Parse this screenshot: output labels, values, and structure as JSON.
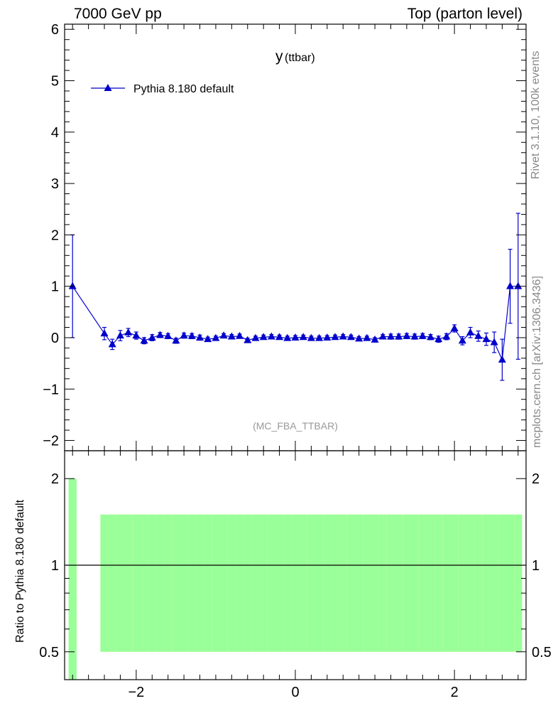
{
  "header": {
    "left": "7000 GeV pp",
    "right": "Top (parton level)"
  },
  "side_labels": {
    "rivet": "Rivet 3.1.10,  100k events",
    "mcplots": "mcplots.cern.ch [arXiv:1306.3436]"
  },
  "colors": {
    "series": "#0000cc",
    "band_inner": "#99ff99",
    "band_outer": "#ffff99",
    "axis": "#000000",
    "analysis_label": "#999999"
  },
  "chart_data": {
    "type": "line",
    "title_main": "y",
    "title_sub": "(ttbar)",
    "analysis": "(MC_FBA_TTBAR)",
    "legend": {
      "label": "Pythia 8.180 default",
      "marker": "triangle",
      "placement": "top-left"
    },
    "xlim": [
      -2.9,
      2.9
    ],
    "ylim": [
      -2.2,
      6.1
    ],
    "yticks": [
      -2,
      -1,
      0,
      1,
      2,
      3,
      4,
      5,
      6
    ],
    "xticks": [
      -2,
      0,
      2
    ],
    "xtick_labels": [
      "−2",
      "0",
      "2"
    ],
    "ytick_labels": [
      "−2",
      "−1",
      "0",
      "1",
      "2",
      "3",
      "4",
      "5",
      "6"
    ],
    "series": [
      {
        "name": "Pythia 8.180 default",
        "x": [
          -2.8,
          -2.4,
          -2.3,
          -2.2,
          -2.1,
          -2.0,
          -1.9,
          -1.8,
          -1.7,
          -1.6,
          -1.5,
          -1.4,
          -1.3,
          -1.2,
          -1.1,
          -1.0,
          -0.9,
          -0.8,
          -0.7,
          -0.6,
          -0.5,
          -0.4,
          -0.3,
          -0.2,
          -0.1,
          0.0,
          0.1,
          0.2,
          0.3,
          0.4,
          0.5,
          0.6,
          0.7,
          0.8,
          0.9,
          1.0,
          1.1,
          1.2,
          1.3,
          1.4,
          1.5,
          1.6,
          1.7,
          1.8,
          1.9,
          2.0,
          2.1,
          2.2,
          2.3,
          2.4,
          2.5,
          2.6,
          2.7,
          2.8
        ],
        "y": [
          1.0,
          0.08,
          -0.13,
          0.04,
          0.1,
          0.04,
          -0.06,
          0.0,
          0.05,
          0.03,
          -0.06,
          0.04,
          0.03,
          0.0,
          -0.03,
          -0.01,
          0.04,
          0.02,
          0.03,
          -0.05,
          -0.01,
          0.01,
          0.02,
          0.01,
          -0.01,
          0.0,
          0.01,
          -0.01,
          -0.01,
          0.0,
          0.01,
          0.02,
          0.01,
          -0.02,
          -0.01,
          -0.04,
          0.02,
          0.02,
          0.02,
          0.03,
          0.02,
          0.03,
          0.01,
          -0.03,
          0.02,
          0.18,
          -0.06,
          0.1,
          0.03,
          -0.03,
          -0.09,
          -0.43,
          1.0,
          1.0
        ],
        "err": [
          1.0,
          0.12,
          0.1,
          0.1,
          0.08,
          0.07,
          0.06,
          0.06,
          0.05,
          0.05,
          0.05,
          0.05,
          0.05,
          0.05,
          0.04,
          0.04,
          0.04,
          0.04,
          0.04,
          0.04,
          0.04,
          0.04,
          0.04,
          0.04,
          0.04,
          0.04,
          0.04,
          0.04,
          0.04,
          0.04,
          0.04,
          0.04,
          0.04,
          0.04,
          0.04,
          0.04,
          0.04,
          0.05,
          0.05,
          0.05,
          0.05,
          0.05,
          0.05,
          0.06,
          0.06,
          0.07,
          0.08,
          0.1,
          0.1,
          0.12,
          0.2,
          0.4,
          0.72,
          1.42
        ]
      }
    ],
    "ratio": {
      "ylabel": "Ratio to Pythia 8.180 default",
      "ylim": [
        0.4,
        2.5
      ],
      "yticks": [
        0.5,
        1,
        2
      ],
      "ytick_labels": [
        "0.5",
        "1",
        "2"
      ],
      "reference": 1,
      "bins": [
        {
          "x0": -2.85,
          "x1": -2.75,
          "g": 1.0,
          "y": 0.5
        },
        {
          "x0": -2.45,
          "x1": -2.35,
          "g": 0.5,
          "y": 0.5
        },
        {
          "x0": -2.35,
          "x1": -2.25,
          "g": 0.5,
          "y": 0.5
        },
        {
          "x0": -2.25,
          "x1": -2.15,
          "g": 0.5,
          "y": 0.5
        },
        {
          "x0": -2.15,
          "x1": -2.05,
          "g": 0.5,
          "y": 0.5
        },
        {
          "x0": -2.05,
          "x1": -1.95,
          "g": 0.5,
          "y": 0.5
        },
        {
          "x0": -1.95,
          "x1": -1.85,
          "g": 0.5,
          "y": 0.5
        },
        {
          "x0": -1.85,
          "x1": -1.75,
          "g": 0.5,
          "y": 0.5
        },
        {
          "x0": -1.75,
          "x1": -1.65,
          "g": 0.5,
          "y": 0.5
        },
        {
          "x0": -1.65,
          "x1": -1.55,
          "g": 0.5,
          "y": 0.5
        },
        {
          "x0": -1.55,
          "x1": -1.45,
          "g": 0.5,
          "y": 0.5
        },
        {
          "x0": -1.45,
          "x1": -1.35,
          "g": 0.5,
          "y": 0.5
        },
        {
          "x0": -1.35,
          "x1": -1.25,
          "g": 0.5,
          "y": 0.5
        },
        {
          "x0": -1.25,
          "x1": -1.15,
          "g": 0.5,
          "y": 0.5
        },
        {
          "x0": -1.15,
          "x1": -1.05,
          "g": 0.5,
          "y": 0.5
        },
        {
          "x0": -1.05,
          "x1": -0.95,
          "g": 0.5,
          "y": 0.5
        },
        {
          "x0": -0.95,
          "x1": -0.85,
          "g": 0.5,
          "y": 0.5
        },
        {
          "x0": -0.85,
          "x1": -0.75,
          "g": 0.5,
          "y": 0.5
        },
        {
          "x0": -0.75,
          "x1": -0.65,
          "g": 0.5,
          "y": 0.5
        },
        {
          "x0": -0.65,
          "x1": -0.55,
          "g": 0.5,
          "y": 0.5
        },
        {
          "x0": -0.55,
          "x1": -0.45,
          "g": 0.5,
          "y": 0.5
        },
        {
          "x0": -0.45,
          "x1": -0.35,
          "g": 0.5,
          "y": 0.5
        },
        {
          "x0": -0.35,
          "x1": -0.25,
          "g": 0.5,
          "y": 0.5
        },
        {
          "x0": -0.25,
          "x1": -0.15,
          "g": 0.5,
          "y": 0.5
        },
        {
          "x0": -0.15,
          "x1": -0.05,
          "g": 0.5,
          "y": 0.5
        },
        {
          "x0": -0.05,
          "x1": 0.05,
          "g": 0.5,
          "y": 0.5
        },
        {
          "x0": 0.05,
          "x1": 0.15,
          "g": 0.5,
          "y": 0.5
        },
        {
          "x0": 0.15,
          "x1": 0.25,
          "g": 0.5,
          "y": 0.5
        },
        {
          "x0": 0.25,
          "x1": 0.35,
          "g": 0.5,
          "y": 0.5
        },
        {
          "x0": 0.35,
          "x1": 0.45,
          "g": 0.5,
          "y": 0.5
        },
        {
          "x0": 0.45,
          "x1": 0.55,
          "g": 0.5,
          "y": 0.5
        },
        {
          "x0": 0.55,
          "x1": 0.65,
          "g": 0.5,
          "y": 0.5
        },
        {
          "x0": 0.65,
          "x1": 0.75,
          "g": 0.5,
          "y": 0.5
        },
        {
          "x0": 0.75,
          "x1": 0.85,
          "g": 0.5,
          "y": 0.5
        },
        {
          "x0": 0.85,
          "x1": 0.95,
          "g": 0.5,
          "y": 0.5
        },
        {
          "x0": 0.95,
          "x1": 1.05,
          "g": 0.5,
          "y": 0.5
        },
        {
          "x0": 1.05,
          "x1": 1.15,
          "g": 0.5,
          "y": 0.5
        },
        {
          "x0": 1.15,
          "x1": 1.25,
          "g": 0.5,
          "y": 0.5
        },
        {
          "x0": 1.25,
          "x1": 1.35,
          "g": 0.5,
          "y": 0.5
        },
        {
          "x0": 1.35,
          "x1": 1.45,
          "g": 0.5,
          "y": 0.5
        },
        {
          "x0": 1.45,
          "x1": 1.55,
          "g": 0.5,
          "y": 0.5
        },
        {
          "x0": 1.55,
          "x1": 1.65,
          "g": 0.5,
          "y": 0.5
        },
        {
          "x0": 1.65,
          "x1": 1.75,
          "g": 0.5,
          "y": 0.5
        },
        {
          "x0": 1.75,
          "x1": 1.85,
          "g": 0.5,
          "y": 0.5
        },
        {
          "x0": 1.85,
          "x1": 1.95,
          "g": 0.5,
          "y": 0.5
        },
        {
          "x0": 1.95,
          "x1": 2.05,
          "g": 0.5,
          "y": 0.5
        },
        {
          "x0": 2.05,
          "x1": 2.15,
          "g": 0.5,
          "y": 0.5
        },
        {
          "x0": 2.15,
          "x1": 2.25,
          "g": 0.5,
          "y": 0.5
        },
        {
          "x0": 2.25,
          "x1": 2.35,
          "g": 0.5,
          "y": 0.5
        },
        {
          "x0": 2.35,
          "x1": 2.45,
          "g": 0.5,
          "y": 0.5
        },
        {
          "x0": 2.45,
          "x1": 2.55,
          "g": 0.5,
          "y": 0.5
        },
        {
          "x0": 2.55,
          "x1": 2.65,
          "g": 0.5,
          "y": 0.5
        },
        {
          "x0": 2.65,
          "x1": 2.75,
          "g": 0.5,
          "y": 0.5
        },
        {
          "x0": 2.75,
          "x1": 2.85,
          "g": 0.5,
          "y": 0.5
        }
      ]
    }
  }
}
